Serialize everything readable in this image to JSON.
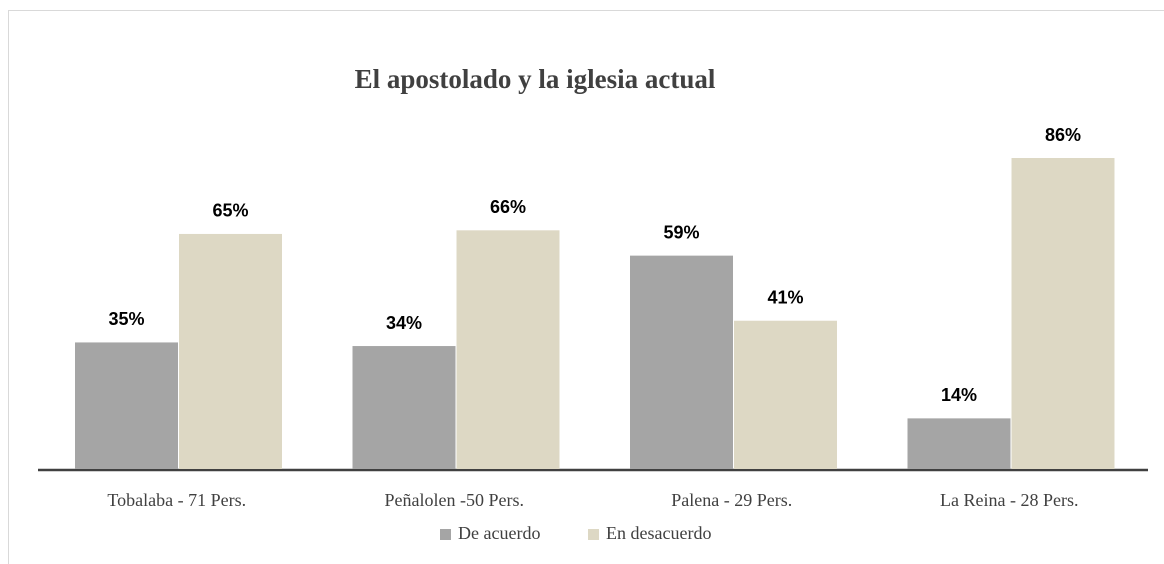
{
  "chart_data": {
    "type": "bar",
    "title": "El apostolado y la iglesia actual",
    "categories": [
      "Tobalaba - 71 Pers.",
      "Peñalolen -50 Pers.",
      "Palena - 29 Pers.",
      "La Reina - 28 Pers."
    ],
    "series": [
      {
        "name": "De acuerdo",
        "color": "#a5a5a5",
        "values": [
          35,
          34,
          59,
          14
        ],
        "value_labels": [
          "35%",
          "34%",
          "59%",
          "14%"
        ]
      },
      {
        "name": "En desacuerdo",
        "color": "#ddd8c4",
        "values": [
          65,
          66,
          41,
          86
        ],
        "value_labels": [
          "65%",
          "66%",
          "41%",
          "86%"
        ]
      }
    ],
    "legend": "bottom"
  }
}
